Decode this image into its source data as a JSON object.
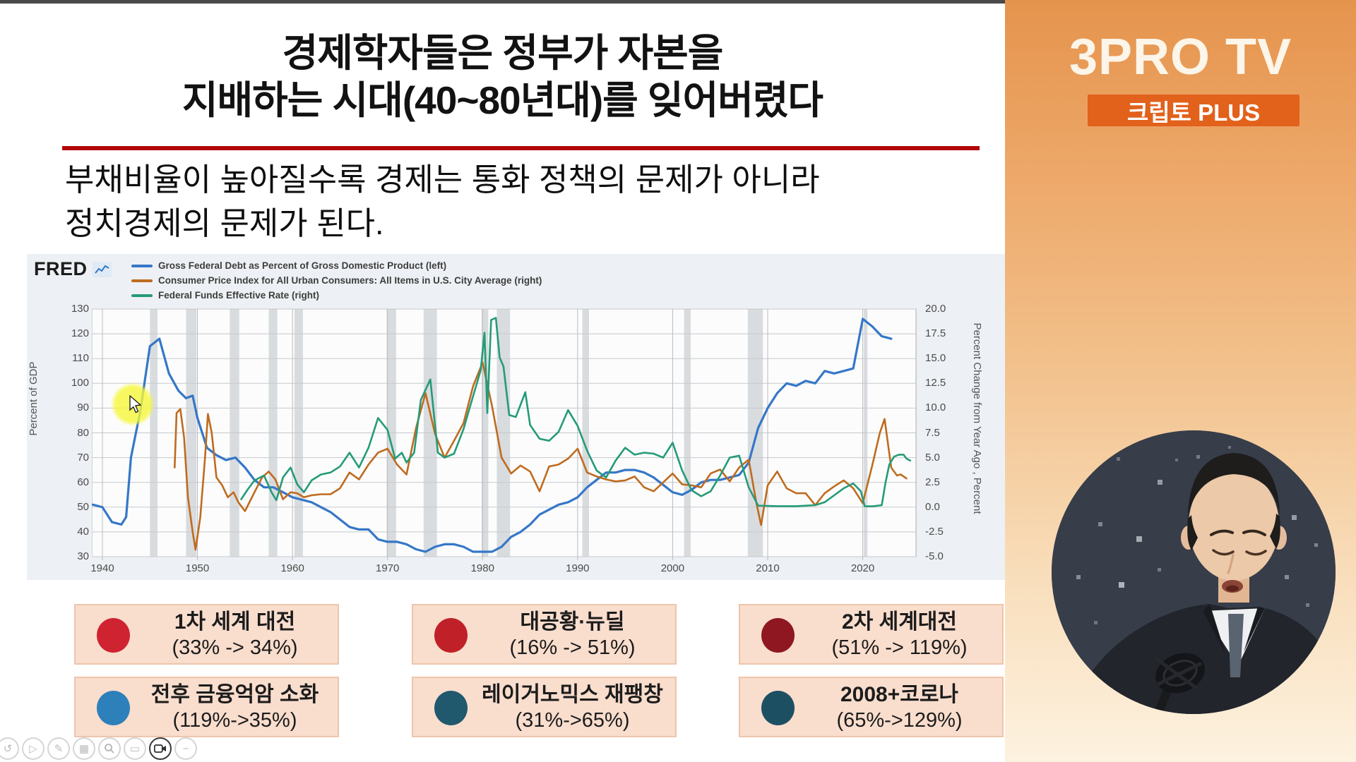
{
  "slide": {
    "title_line1": "경제학자들은 정부가 자본을",
    "title_line2": "지배하는 시대(40~80년대)를 잊어버렸다",
    "divider_color": "#b20608",
    "subtitle_line1": "부채비율이 높아질수록 경제는 통화 정책의 문제가 아니라",
    "subtitle_line2": "정치경제의 문제가 된다."
  },
  "fred": {
    "logo": "FRED"
  },
  "chart_data": {
    "type": "line",
    "legend_position": "top-left",
    "grid": true,
    "x_axis": {
      "ticks": [
        1940,
        1950,
        1960,
        1970,
        1980,
        1990,
        2000,
        2010,
        2020
      ],
      "range": [
        1938.9,
        2025.5
      ]
    },
    "left_axis": {
      "label": "Percent of GDP",
      "ticks": [
        130,
        120,
        110,
        100,
        90,
        80,
        70,
        60,
        50,
        40,
        30
      ],
      "range": [
        30,
        130
      ]
    },
    "right_axis": {
      "label": "Percent Change from Year Ago , Percent",
      "ticks": [
        "20.0",
        "17.5",
        "15.0",
        "12.5",
        "10.0",
        "7.5",
        "5.0",
        "2.5",
        "0.0",
        "-2.5",
        "-5.0"
      ],
      "range": [
        -5,
        20
      ]
    },
    "series": [
      {
        "name": "Gross Federal Debt as Percent of Gross Domestic Product (left)",
        "axis": "left",
        "color": "#3577c8",
        "width": 3.2,
        "points": [
          [
            1939,
            51
          ],
          [
            1940,
            50
          ],
          [
            1941,
            44
          ],
          [
            1942,
            43
          ],
          [
            1942.5,
            46
          ],
          [
            1943,
            70
          ],
          [
            1944,
            89
          ],
          [
            1945,
            115
          ],
          [
            1946,
            118
          ],
          [
            1947,
            104
          ],
          [
            1948,
            97
          ],
          [
            1948.8,
            94
          ],
          [
            1949.5,
            95
          ],
          [
            1950,
            86
          ],
          [
            1951,
            74
          ],
          [
            1952,
            71
          ],
          [
            1953,
            69
          ],
          [
            1954,
            70
          ],
          [
            1955,
            66
          ],
          [
            1956,
            61
          ],
          [
            1957,
            58
          ],
          [
            1958,
            58
          ],
          [
            1959,
            56
          ],
          [
            1960,
            54
          ],
          [
            1961,
            53
          ],
          [
            1962,
            52
          ],
          [
            1963,
            50
          ],
          [
            1964,
            48
          ],
          [
            1965,
            45
          ],
          [
            1966,
            42
          ],
          [
            1967,
            41
          ],
          [
            1968,
            41
          ],
          [
            1969,
            37
          ],
          [
            1970,
            36
          ],
          [
            1971,
            36
          ],
          [
            1972,
            35
          ],
          [
            1973,
            33
          ],
          [
            1974,
            32
          ],
          [
            1975,
            34
          ],
          [
            1976,
            35
          ],
          [
            1977,
            35
          ],
          [
            1978,
            34
          ],
          [
            1979,
            32
          ],
          [
            1980,
            32
          ],
          [
            1981,
            32
          ],
          [
            1982,
            34
          ],
          [
            1983,
            38
          ],
          [
            1984,
            40
          ],
          [
            1985,
            43
          ],
          [
            1986,
            47
          ],
          [
            1987,
            49
          ],
          [
            1988,
            51
          ],
          [
            1989,
            52
          ],
          [
            1990,
            54
          ],
          [
            1991,
            58
          ],
          [
            1992,
            61
          ],
          [
            1993,
            64
          ],
          [
            1994,
            64
          ],
          [
            1995,
            65
          ],
          [
            1996,
            65
          ],
          [
            1997,
            64
          ],
          [
            1998,
            62
          ],
          [
            1999,
            59
          ],
          [
            2000,
            56
          ],
          [
            2001,
            55
          ],
          [
            2002,
            57
          ],
          [
            2003,
            60
          ],
          [
            2004,
            61
          ],
          [
            2005,
            61
          ],
          [
            2006,
            62
          ],
          [
            2007,
            63
          ],
          [
            2008,
            68
          ],
          [
            2009,
            82
          ],
          [
            2010,
            90
          ],
          [
            2011,
            96
          ],
          [
            2012,
            100
          ],
          [
            2013,
            99
          ],
          [
            2014,
            101
          ],
          [
            2015,
            100
          ],
          [
            2016,
            105
          ],
          [
            2017,
            104
          ],
          [
            2018,
            105
          ],
          [
            2019,
            106
          ],
          [
            2020,
            126
          ],
          [
            2021,
            123
          ],
          [
            2022,
            119
          ],
          [
            2023,
            118
          ]
        ]
      },
      {
        "name": "Consumer Price Index for All Urban Consumers: All Items in U.S. City Average (right)",
        "axis": "right",
        "color": "#bf6b1f",
        "width": 2.6,
        "points": [
          [
            1947.6,
            4.0
          ],
          [
            1947.8,
            9.5
          ],
          [
            1948.2,
            9.9
          ],
          [
            1948.6,
            7.0
          ],
          [
            1949.0,
            1.0
          ],
          [
            1949.5,
            -2.5
          ],
          [
            1949.8,
            -4.3
          ],
          [
            1950.3,
            -1.0
          ],
          [
            1950.8,
            5.0
          ],
          [
            1951.1,
            9.4
          ],
          [
            1951.5,
            7.5
          ],
          [
            1952.0,
            3.0
          ],
          [
            1952.6,
            2.2
          ],
          [
            1953.2,
            1.0
          ],
          [
            1953.8,
            1.5
          ],
          [
            1954.3,
            0.5
          ],
          [
            1955,
            -0.4
          ],
          [
            1956,
            1.5
          ],
          [
            1956.8,
            3.0
          ],
          [
            1957.5,
            3.6
          ],
          [
            1958.2,
            2.8
          ],
          [
            1959,
            0.8
          ],
          [
            1959.8,
            1.5
          ],
          [
            1960.5,
            1.4
          ],
          [
            1961.2,
            1.0
          ],
          [
            1962,
            1.2
          ],
          [
            1963,
            1.3
          ],
          [
            1964,
            1.3
          ],
          [
            1965,
            1.9
          ],
          [
            1966,
            3.5
          ],
          [
            1967,
            2.8
          ],
          [
            1968,
            4.3
          ],
          [
            1969,
            5.5
          ],
          [
            1970,
            5.9
          ],
          [
            1971,
            4.3
          ],
          [
            1972,
            3.3
          ],
          [
            1973,
            8.0
          ],
          [
            1974,
            11.5
          ],
          [
            1975,
            7.4
          ],
          [
            1976,
            5.0
          ],
          [
            1977,
            6.7
          ],
          [
            1978,
            8.5
          ],
          [
            1979,
            12.2
          ],
          [
            1980,
            14.6
          ],
          [
            1981,
            10.2
          ],
          [
            1982,
            5.0
          ],
          [
            1983,
            3.4
          ],
          [
            1984,
            4.2
          ],
          [
            1985,
            3.6
          ],
          [
            1986,
            1.6
          ],
          [
            1987,
            4.1
          ],
          [
            1988,
            4.3
          ],
          [
            1989,
            4.9
          ],
          [
            1990,
            5.9
          ],
          [
            1991,
            3.5
          ],
          [
            1992,
            3.1
          ],
          [
            1993,
            2.8
          ],
          [
            1994,
            2.6
          ],
          [
            1995,
            2.7
          ],
          [
            1996,
            3.1
          ],
          [
            1997,
            2.0
          ],
          [
            1998,
            1.6
          ],
          [
            1999,
            2.5
          ],
          [
            2000,
            3.4
          ],
          [
            2001,
            2.3
          ],
          [
            2002,
            2.2
          ],
          [
            2003,
            2.0
          ],
          [
            2004,
            3.4
          ],
          [
            2005,
            3.8
          ],
          [
            2006,
            2.6
          ],
          [
            2007,
            4.0
          ],
          [
            2008,
            4.8
          ],
          [
            2008.8,
            0.5
          ],
          [
            2009.3,
            -1.8
          ],
          [
            2010,
            2.2
          ],
          [
            2011,
            3.6
          ],
          [
            2012,
            1.9
          ],
          [
            2013,
            1.4
          ],
          [
            2014,
            1.4
          ],
          [
            2015,
            0.2
          ],
          [
            2016,
            1.4
          ],
          [
            2017,
            2.1
          ],
          [
            2018,
            2.7
          ],
          [
            2019,
            1.9
          ],
          [
            2020,
            0.4
          ],
          [
            2021,
            4.2
          ],
          [
            2021.8,
            7.5
          ],
          [
            2022.3,
            8.9
          ],
          [
            2023,
            4.0
          ],
          [
            2023.6,
            3.2
          ],
          [
            2024,
            3.3
          ],
          [
            2024.6,
            2.9
          ]
        ]
      },
      {
        "name": "Federal Funds Effective Rate (right)",
        "axis": "right",
        "color": "#259b78",
        "width": 2.6,
        "points": [
          [
            1954.6,
            0.8
          ],
          [
            1955.3,
            1.8
          ],
          [
            1956,
            2.7
          ],
          [
            1957,
            3.2
          ],
          [
            1957.8,
            1.5
          ],
          [
            1958.3,
            0.7
          ],
          [
            1959,
            3.0
          ],
          [
            1959.8,
            4.0
          ],
          [
            1960.5,
            2.3
          ],
          [
            1961.2,
            1.5
          ],
          [
            1962,
            2.7
          ],
          [
            1963,
            3.3
          ],
          [
            1964,
            3.5
          ],
          [
            1965,
            4.1
          ],
          [
            1966,
            5.5
          ],
          [
            1967,
            4.0
          ],
          [
            1968,
            6.0
          ],
          [
            1969,
            9.0
          ],
          [
            1970,
            7.8
          ],
          [
            1970.8,
            4.9
          ],
          [
            1971.5,
            5.5
          ],
          [
            1972,
            4.5
          ],
          [
            1972.8,
            5.5
          ],
          [
            1973.5,
            10.8
          ],
          [
            1974.5,
            12.9
          ],
          [
            1975.3,
            5.5
          ],
          [
            1976,
            5.0
          ],
          [
            1977,
            5.4
          ],
          [
            1978,
            7.9
          ],
          [
            1979,
            11.2
          ],
          [
            1979.8,
            13.8
          ],
          [
            1980.2,
            17.6
          ],
          [
            1980.5,
            9.5
          ],
          [
            1980.9,
            18.9
          ],
          [
            1981.4,
            19.1
          ],
          [
            1981.8,
            15.1
          ],
          [
            1982.2,
            14.2
          ],
          [
            1982.8,
            9.3
          ],
          [
            1983.5,
            9.1
          ],
          [
            1984.5,
            11.6
          ],
          [
            1985,
            8.3
          ],
          [
            1986,
            6.9
          ],
          [
            1987,
            6.7
          ],
          [
            1988,
            7.6
          ],
          [
            1989,
            9.8
          ],
          [
            1990,
            8.2
          ],
          [
            1991,
            5.7
          ],
          [
            1992,
            3.7
          ],
          [
            1993,
            3.0
          ],
          [
            1994,
            4.7
          ],
          [
            1995,
            6.0
          ],
          [
            1996,
            5.3
          ],
          [
            1997,
            5.5
          ],
          [
            1998,
            5.4
          ],
          [
            1999,
            5.0
          ],
          [
            2000,
            6.5
          ],
          [
            2001,
            3.7
          ],
          [
            2002,
            1.7
          ],
          [
            2003,
            1.1
          ],
          [
            2004,
            1.6
          ],
          [
            2005,
            3.2
          ],
          [
            2006,
            5.0
          ],
          [
            2007,
            5.2
          ],
          [
            2008,
            2.0
          ],
          [
            2009,
            0.15
          ],
          [
            2011,
            0.1
          ],
          [
            2013,
            0.1
          ],
          [
            2015,
            0.2
          ],
          [
            2016,
            0.5
          ],
          [
            2017,
            1.2
          ],
          [
            2018,
            1.9
          ],
          [
            2019,
            2.4
          ],
          [
            2019.8,
            1.6
          ],
          [
            2020.2,
            0.1
          ],
          [
            2021,
            0.08
          ],
          [
            2022,
            0.2
          ],
          [
            2022.4,
            2.5
          ],
          [
            2022.8,
            4.3
          ],
          [
            2023.3,
            5.1
          ],
          [
            2023.8,
            5.3
          ],
          [
            2024.3,
            5.3
          ],
          [
            2024.6,
            4.9
          ],
          [
            2025,
            4.7
          ]
        ]
      }
    ],
    "recession_bands": [
      [
        1945.0,
        1945.8
      ],
      [
        1948.8,
        1949.9
      ],
      [
        1953.4,
        1954.4
      ],
      [
        1957.5,
        1958.4
      ],
      [
        1960.2,
        1961.1
      ],
      [
        1969.9,
        1970.9
      ],
      [
        1973.8,
        1975.2
      ],
      [
        1979.9,
        1980.6
      ],
      [
        1981.5,
        1982.9
      ],
      [
        1990.5,
        1991.2
      ],
      [
        2001.2,
        2001.9
      ],
      [
        2007.9,
        2009.5
      ],
      [
        2020.1,
        2020.5
      ]
    ]
  },
  "annotations": {
    "boxes": [
      {
        "label": "1차 세계 대전",
        "range": "(33% -> 34%)",
        "dot_color": "#cf2331"
      },
      {
        "label": "대공황·뉴딜",
        "range": "(16% -> 51%)",
        "dot_color": "#c02028"
      },
      {
        "label": "2차 세계대전",
        "range": "(51% -> 119%)",
        "dot_color": "#8e1722"
      },
      {
        "label": "전후 금융억암 소화",
        "range": "(119%->35%)",
        "dot_color": "#2d80ba"
      },
      {
        "label": "레이거노믹스 재팽창",
        "range": "(31%->65%)",
        "dot_color": "#20586e"
      },
      {
        "label": "2008+코로나",
        "range": "(65%->129%)",
        "dot_color": "#1d4f63"
      }
    ]
  },
  "toolbar": {
    "icons": [
      {
        "name": "undo-icon",
        "glyph": "↺"
      },
      {
        "name": "play-icon",
        "glyph": "▷"
      },
      {
        "name": "pen-icon",
        "glyph": "✎"
      },
      {
        "name": "copy-icon",
        "glyph": "▦"
      },
      {
        "name": "search-icon",
        "glyph": ""
      },
      {
        "name": "screen-icon",
        "glyph": "▭"
      },
      {
        "name": "camera-icon",
        "glyph": "",
        "strong": true
      },
      {
        "name": "minus-icon",
        "glyph": "−"
      }
    ]
  },
  "sidebar": {
    "brand": "3PRO TV",
    "badge": "크립토 PLUS",
    "badge_color": "#e2611b"
  }
}
